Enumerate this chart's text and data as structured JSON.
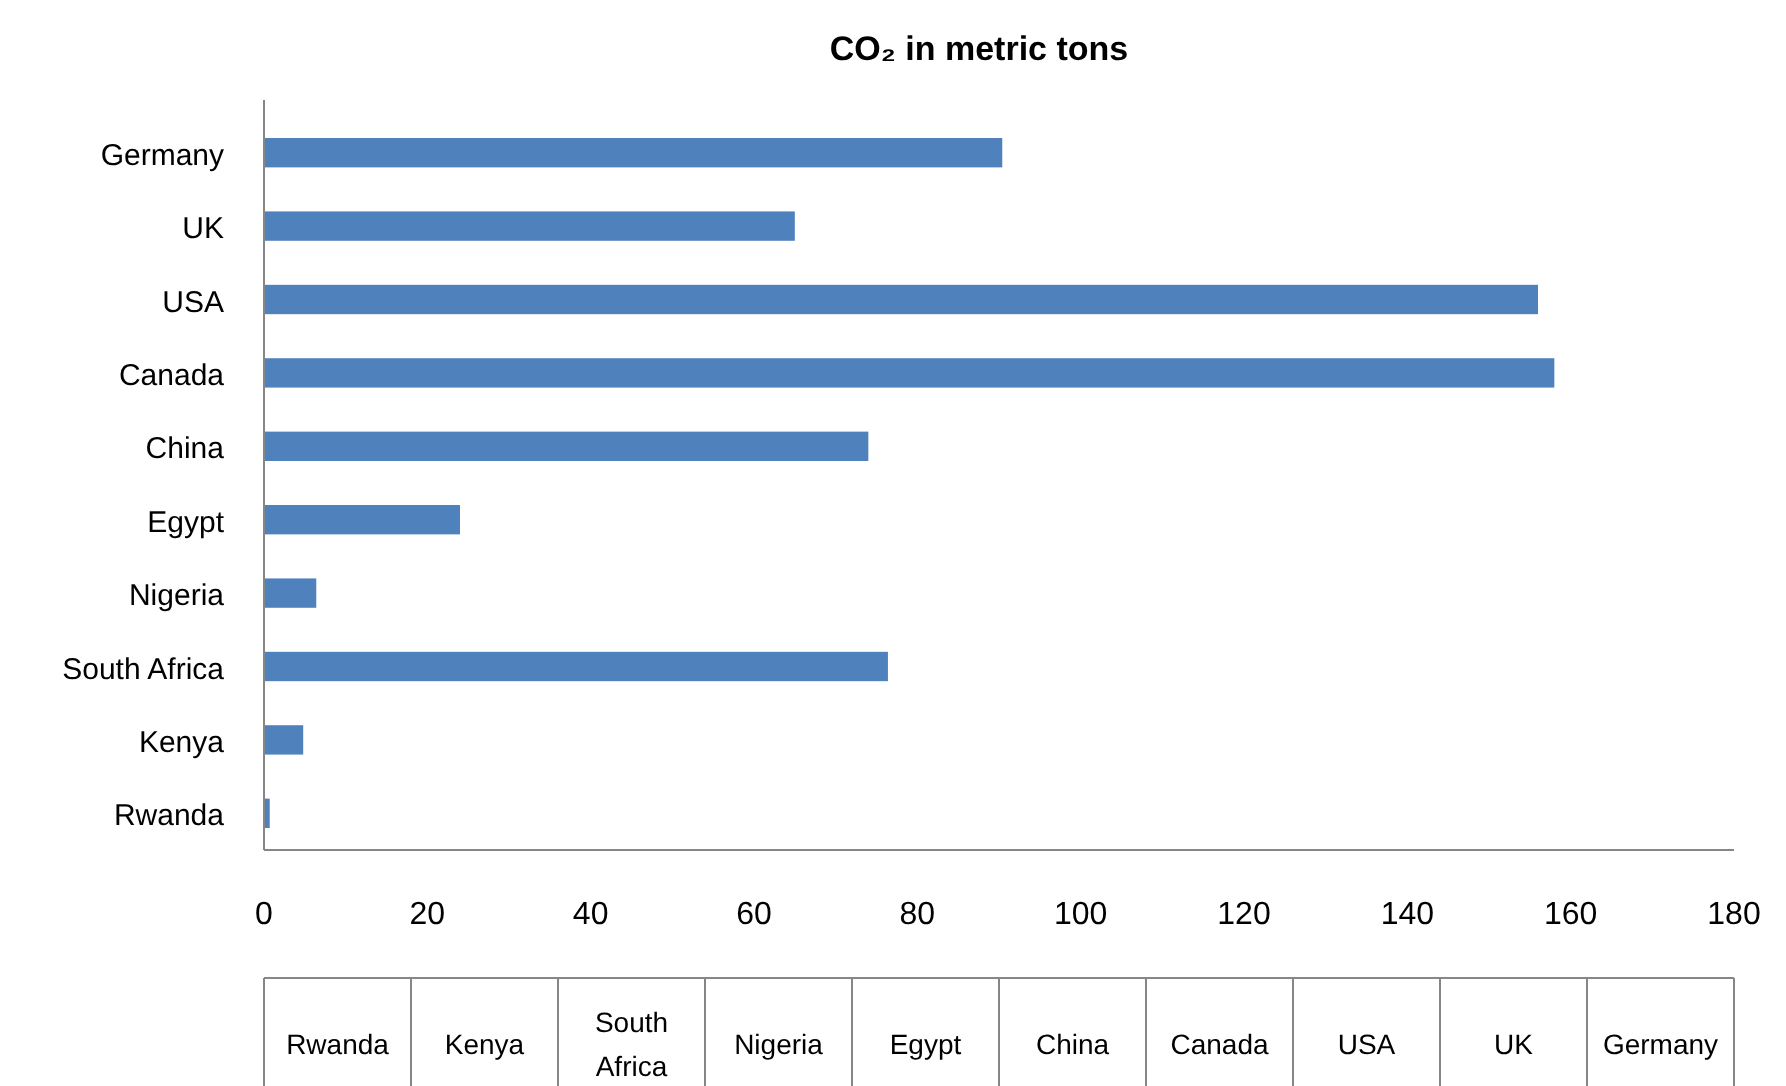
{
  "chart_data": {
    "type": "bar",
    "orientation": "horizontal",
    "title": "CO₂ in metric tons",
    "categories": [
      "Germany",
      "UK",
      "USA",
      "Canada",
      "China",
      "Egypt",
      "Nigeria",
      "South Africa",
      "Kenya",
      "Rwanda"
    ],
    "values": [
      90.4,
      65,
      156,
      158,
      74,
      24,
      6.4,
      76.4,
      4.8,
      0.7
    ],
    "color": "#4f81bd",
    "xlim": [
      0,
      180
    ],
    "xticks": [
      0,
      20,
      40,
      60,
      80,
      100,
      120,
      140,
      160,
      180
    ],
    "grid": false
  }
}
